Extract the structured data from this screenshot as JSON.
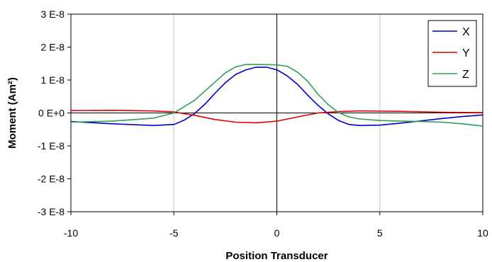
{
  "chart_data": {
    "type": "line",
    "xlabel": "Position Transducer",
    "ylabel": "Moment (Am²)",
    "xlim": [
      -10,
      10
    ],
    "ylim": [
      -3e-08,
      3e-08
    ],
    "x_ticks": [
      -10,
      -5,
      0,
      5,
      10
    ],
    "x_tick_labels": [
      "-10",
      "-5",
      "0",
      "5",
      "10"
    ],
    "y_ticks": [
      3e-08,
      2e-08,
      1e-08,
      0,
      -1e-08,
      -2e-08,
      -3e-08
    ],
    "y_tick_labels": [
      "3 E-8",
      "2 E-8",
      "1 E-8",
      "0 E+0",
      "-1 E-8",
      "-2 E-8",
      "-3 E-8"
    ],
    "grid": "vertical major lines",
    "legend_position": "top-right",
    "series": [
      {
        "name": "X",
        "color": "#0000cc",
        "x": [
          -10,
          -8,
          -6,
          -5,
          -4.5,
          -4,
          -3.5,
          -3,
          -2.5,
          -2,
          -1.5,
          -1,
          -0.5,
          0,
          0.5,
          1,
          1.5,
          2,
          2.5,
          3,
          3.5,
          4,
          5,
          6,
          7,
          8,
          9,
          10
        ],
        "y": [
          -2.6e-09,
          -3.3e-09,
          -3.8e-09,
          -3.5e-09,
          -2.2e-09,
          -2e-10,
          2.6e-09,
          6e-09,
          9.2e-09,
          1.17e-08,
          1.31e-08,
          1.39e-08,
          1.39e-08,
          1.31e-08,
          1.13e-08,
          8.7e-09,
          5.4e-09,
          2.3e-09,
          -3e-10,
          -2.3e-09,
          -3.5e-09,
          -3.8e-09,
          -3.7e-09,
          -3.1e-09,
          -2.4e-09,
          -1.7e-09,
          -1.1e-09,
          -6e-10
        ]
      },
      {
        "name": "Y",
        "color": "#dd0000",
        "x": [
          -10,
          -8,
          -6,
          -5,
          -4,
          -3,
          -2,
          -1,
          0,
          1,
          2,
          3,
          4,
          6,
          8,
          10
        ],
        "y": [
          7e-10,
          8e-10,
          6e-10,
          3e-10,
          -7e-10,
          -2e-09,
          -2.8e-09,
          -3e-09,
          -2.5e-09,
          -1.2e-09,
          0,
          4e-10,
          6e-10,
          5e-10,
          2e-10,
          1e-10
        ]
      },
      {
        "name": "Z",
        "color": "#2ca05a",
        "x": [
          -10,
          -8,
          -6,
          -5,
          -4,
          -3,
          -2.5,
          -2,
          -1.5,
          -1,
          0,
          0.5,
          1,
          1.5,
          2,
          2.5,
          3,
          3.5,
          4,
          5,
          6,
          7,
          8,
          9,
          10
        ],
        "y": [
          -2.8e-09,
          -2.5e-09,
          -1.6e-09,
          0,
          3.8e-09,
          9.4e-09,
          1.22e-08,
          1.4e-08,
          1.47e-08,
          1.47e-08,
          1.46e-08,
          1.42e-08,
          1.24e-08,
          9.6e-09,
          5.7e-09,
          2.5e-09,
          1e-10,
          -1.2e-09,
          -1.8e-09,
          -2.3e-09,
          -2.5e-09,
          -2.6e-09,
          -2.8e-09,
          -3.3e-09,
          -4e-09
        ]
      }
    ]
  }
}
